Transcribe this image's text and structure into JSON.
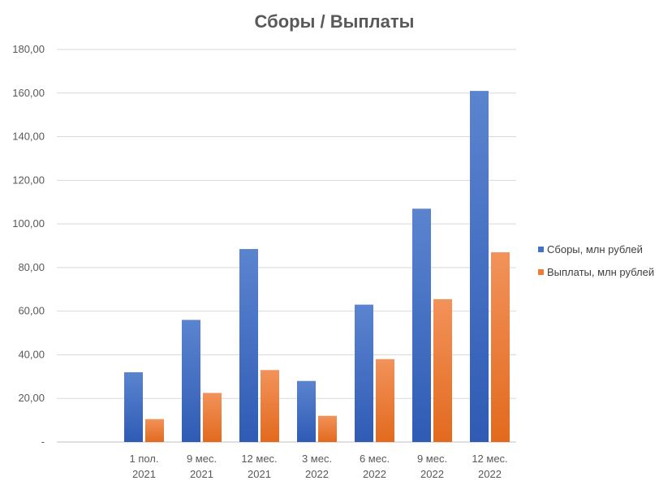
{
  "chart_data": {
    "type": "bar",
    "title": "Сборы / Выплаты",
    "xlabel": "",
    "ylabel": "",
    "categories": [
      [
        "1 пол.",
        "2021"
      ],
      [
        "9 мес.",
        "2021"
      ],
      [
        "12 мес.",
        "2021"
      ],
      [
        "3 мес.",
        "2022"
      ],
      [
        "6 мес.",
        "2022"
      ],
      [
        "9 мес.",
        "2022"
      ],
      [
        "12 мес.",
        "2022"
      ]
    ],
    "series": [
      {
        "name": "Сборы, млн рублей",
        "color": "#4472C4",
        "values": [
          32,
          56,
          88.5,
          28,
          63,
          107,
          161
        ]
      },
      {
        "name": "Выплаты, млн рублей",
        "color": "#ED7D31",
        "values": [
          10.5,
          22.5,
          33,
          12,
          38,
          65.5,
          87
        ]
      }
    ],
    "ylim": [
      0,
      180
    ],
    "yticks": [
      "-",
      "20,00",
      "40,00",
      "60,00",
      "80,00",
      "100,00",
      "120,00",
      "140,00",
      "160,00",
      "180,00"
    ],
    "grid": true,
    "legend_position": "right"
  }
}
